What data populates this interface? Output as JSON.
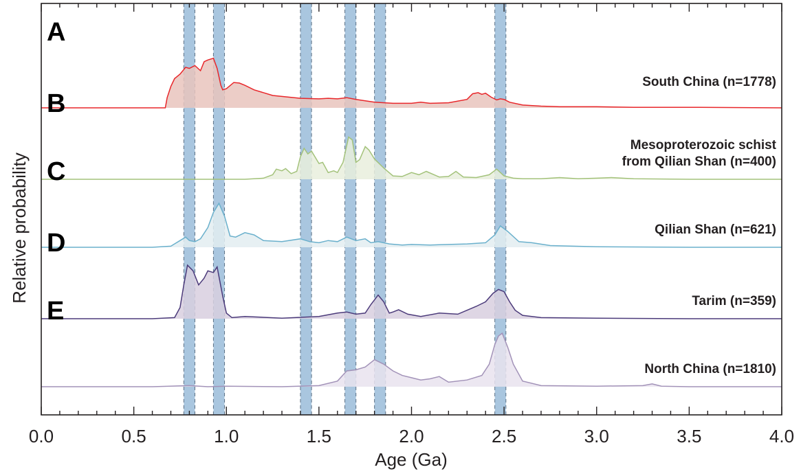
{
  "chart_data": {
    "type": "area",
    "xlabel": "Age (Ga)",
    "ylabel": "Relative probability",
    "xlim": [
      0.0,
      4.0
    ],
    "x_ticks": [
      "0.0",
      "0.5",
      "1.0",
      "1.5",
      "2.0",
      "2.5",
      "3.0",
      "3.5",
      "4.0"
    ],
    "grid": false,
    "highlight_bands": [
      {
        "from": 0.77,
        "to": 0.83
      },
      {
        "from": 0.93,
        "to": 0.99
      },
      {
        "from": 1.4,
        "to": 1.46
      },
      {
        "from": 1.64,
        "to": 1.7
      },
      {
        "from": 1.8,
        "to": 1.86
      },
      {
        "from": 2.45,
        "to": 2.51
      }
    ],
    "band_color": "#a9c6df",
    "series": [
      {
        "panel": "A",
        "name": "South China (n=1778)",
        "color": "#e8262a",
        "fill": "#e9c4bd",
        "x": [
          0.67,
          0.68,
          0.7,
          0.72,
          0.75,
          0.78,
          0.8,
          0.83,
          0.86,
          0.88,
          0.9,
          0.93,
          0.95,
          0.97,
          0.98,
          1.0,
          1.04,
          1.07,
          1.1,
          1.15,
          1.25,
          1.4,
          1.5,
          1.55,
          1.6,
          1.65,
          1.7,
          1.8,
          1.9,
          2.0,
          2.05,
          2.1,
          2.2,
          2.3,
          2.33,
          2.36,
          2.38,
          2.4,
          2.43,
          2.46,
          2.48,
          2.5,
          2.53,
          2.6,
          2.7,
          2.8,
          3.0,
          3.2,
          3.5,
          4.0
        ],
        "values": [
          0.0,
          0.18,
          0.38,
          0.52,
          0.6,
          0.72,
          0.7,
          0.75,
          0.66,
          0.82,
          0.85,
          0.88,
          0.7,
          0.4,
          0.32,
          0.34,
          0.45,
          0.44,
          0.4,
          0.32,
          0.22,
          0.17,
          0.16,
          0.17,
          0.16,
          0.18,
          0.15,
          0.1,
          0.08,
          0.08,
          0.1,
          0.08,
          0.09,
          0.15,
          0.25,
          0.27,
          0.24,
          0.26,
          0.19,
          0.14,
          0.16,
          0.15,
          0.1,
          0.05,
          0.03,
          0.02,
          0.02,
          0.01,
          0.01,
          0.0
        ]
      },
      {
        "panel": "B",
        "name": "Mesoproterozoic schist from Qilian Shan (n=400)",
        "color": "#a3c27a",
        "fill": "#e9efdd",
        "x": [
          0.8,
          1.1,
          1.2,
          1.25,
          1.27,
          1.3,
          1.32,
          1.35,
          1.38,
          1.4,
          1.42,
          1.44,
          1.46,
          1.5,
          1.52,
          1.55,
          1.58,
          1.6,
          1.63,
          1.66,
          1.68,
          1.7,
          1.72,
          1.75,
          1.77,
          1.8,
          1.85,
          1.9,
          1.95,
          2.0,
          2.04,
          2.08,
          2.15,
          2.2,
          2.24,
          2.28,
          2.35,
          2.42,
          2.46,
          2.5,
          2.55,
          2.6,
          2.7,
          2.8,
          2.9,
          3.0,
          3.08,
          3.2,
          3.5,
          4.0
        ],
        "values": [
          0.0,
          0.0,
          0.02,
          0.08,
          0.18,
          0.15,
          0.19,
          0.1,
          0.14,
          0.4,
          0.55,
          0.45,
          0.5,
          0.28,
          0.3,
          0.12,
          0.15,
          0.12,
          0.3,
          0.75,
          0.7,
          0.3,
          0.35,
          0.58,
          0.52,
          0.36,
          0.2,
          0.06,
          0.05,
          0.12,
          0.08,
          0.14,
          0.04,
          0.05,
          0.14,
          0.04,
          0.03,
          0.08,
          0.18,
          0.06,
          0.02,
          0.01,
          0.01,
          0.03,
          0.01,
          0.02,
          0.03,
          0.01,
          0.0,
          0.0
        ]
      },
      {
        "panel": "C",
        "name": "Qilian Shan (n=621)",
        "color": "#6ab0cc",
        "fill": "#e3edf1",
        "x": [
          0.6,
          0.7,
          0.75,
          0.78,
          0.8,
          0.83,
          0.86,
          0.9,
          0.93,
          0.96,
          0.99,
          1.02,
          1.05,
          1.1,
          1.15,
          1.2,
          1.3,
          1.4,
          1.45,
          1.5,
          1.55,
          1.6,
          1.65,
          1.7,
          1.75,
          1.78,
          1.82,
          1.88,
          1.95,
          2.0,
          2.1,
          2.2,
          2.3,
          2.4,
          2.45,
          2.48,
          2.52,
          2.58,
          2.65,
          2.75,
          3.0,
          3.5,
          4.0
        ],
        "values": [
          0.0,
          0.02,
          0.12,
          0.18,
          0.12,
          0.1,
          0.15,
          0.35,
          0.62,
          0.78,
          0.55,
          0.2,
          0.18,
          0.26,
          0.22,
          0.12,
          0.1,
          0.15,
          0.1,
          0.08,
          0.12,
          0.1,
          0.18,
          0.12,
          0.15,
          0.08,
          0.1,
          0.06,
          0.04,
          0.05,
          0.04,
          0.05,
          0.06,
          0.08,
          0.22,
          0.38,
          0.28,
          0.1,
          0.08,
          0.03,
          0.01,
          0.0,
          0.0
        ]
      },
      {
        "panel": "D",
        "name": "Tarim (n=359)",
        "color": "#4b3a7a",
        "fill": "#d8cfdf",
        "x": [
          0.6,
          0.72,
          0.75,
          0.77,
          0.79,
          0.82,
          0.85,
          0.88,
          0.9,
          0.93,
          0.95,
          0.98,
          1.0,
          1.03,
          1.1,
          1.3,
          1.5,
          1.6,
          1.65,
          1.7,
          1.75,
          1.78,
          1.82,
          1.85,
          1.88,
          1.9,
          1.93,
          1.98,
          2.05,
          2.15,
          2.25,
          2.35,
          2.4,
          2.44,
          2.47,
          2.5,
          2.53,
          2.56,
          2.6,
          2.7,
          3.0,
          3.5,
          4.0
        ],
        "values": [
          0.0,
          0.02,
          0.2,
          0.6,
          0.95,
          0.85,
          0.6,
          0.72,
          0.85,
          0.82,
          0.92,
          0.4,
          0.1,
          0.02,
          0.04,
          0.01,
          0.04,
          0.1,
          0.12,
          0.08,
          0.1,
          0.25,
          0.42,
          0.3,
          0.1,
          0.12,
          0.16,
          0.08,
          0.04,
          0.1,
          0.08,
          0.22,
          0.3,
          0.45,
          0.52,
          0.48,
          0.3,
          0.15,
          0.06,
          0.02,
          0.01,
          0.0,
          0.0
        ]
      },
      {
        "panel": "E",
        "name": "North China (n=1810)",
        "color": "#a292b8",
        "fill": "#e9e3ee",
        "x": [
          0.0,
          0.6,
          0.8,
          0.9,
          1.0,
          1.3,
          1.5,
          1.6,
          1.65,
          1.7,
          1.75,
          1.8,
          1.85,
          1.9,
          1.95,
          2.0,
          2.05,
          2.1,
          2.15,
          2.2,
          2.3,
          2.38,
          2.42,
          2.45,
          2.47,
          2.49,
          2.52,
          2.55,
          2.6,
          2.7,
          3.0,
          3.25,
          3.3,
          3.35,
          3.5,
          4.0
        ],
        "values": [
          0.0,
          0.0,
          0.02,
          0.0,
          0.01,
          0.0,
          0.02,
          0.1,
          0.28,
          0.3,
          0.35,
          0.48,
          0.4,
          0.28,
          0.2,
          0.16,
          0.12,
          0.14,
          0.18,
          0.08,
          0.12,
          0.2,
          0.4,
          0.75,
          0.9,
          0.95,
          0.7,
          0.4,
          0.1,
          0.02,
          0.01,
          0.02,
          0.05,
          0.01,
          0.0,
          0.0
        ]
      }
    ]
  }
}
